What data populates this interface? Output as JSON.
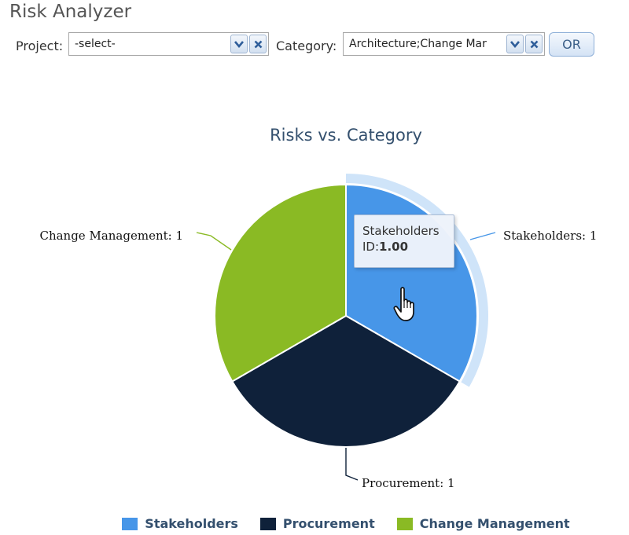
{
  "app": {
    "title": "Risk Analyzer"
  },
  "filters": {
    "project": {
      "label": "Project:",
      "value": "-select-"
    },
    "category": {
      "label": "Category:",
      "value": "Architecture;Change Mar"
    },
    "or_button": "OR"
  },
  "chart_data": {
    "type": "pie",
    "title": "Risks vs. Category",
    "slices": [
      {
        "name": "Stakeholders",
        "value": 1,
        "color": "#4796e8",
        "label": "Stakeholders: 1"
      },
      {
        "name": "Procurement",
        "value": 1,
        "color": "#0f213a",
        "label": "Procurement: 1"
      },
      {
        "name": "Change Management",
        "value": 1,
        "color": "#8aba24",
        "label": "Change Management: 1"
      }
    ],
    "highlighted": "Stakeholders",
    "legend": {
      "position": "bottom"
    }
  },
  "tooltip": {
    "title": "Stakeholders",
    "key": "ID:",
    "value": "1.00"
  }
}
